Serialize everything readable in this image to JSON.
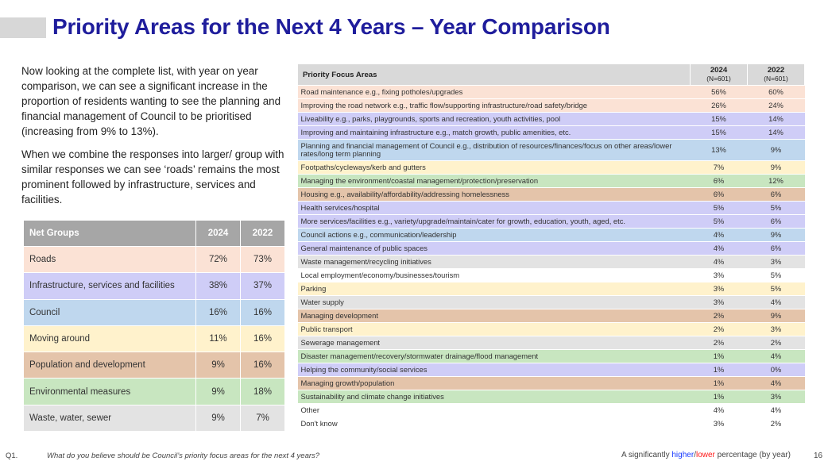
{
  "title": "Priority Areas for the Next 4 Years – Year Comparison",
  "intro": [
    "Now looking at the complete list, with year on year comparison, we can see a significant increase in the proportion of residents wanting to see the planning and financial management of Council to be prioritised (increasing from 9% to 13%).",
    "When we combine the responses into larger/ group with similar responses we can see ‘roads’ remains the most prominent followed by infrastructure, services and facilities."
  ],
  "net_groups": {
    "headers": [
      "Net Groups",
      "2024",
      "2022"
    ],
    "rows": [
      {
        "label": "Roads",
        "y2024": "72%",
        "y2022": "73%",
        "bg": "#fbe2d5",
        "c2024": "",
        "c2022": ""
      },
      {
        "label": "Infrastructure, services and facilities",
        "y2024": "38%",
        "y2022": "37%",
        "bg": "#cfcdf7",
        "c2024": "",
        "c2022": ""
      },
      {
        "label": "Council",
        "y2024": "16%",
        "y2022": "16%",
        "bg": "#bfd7ee",
        "c2024": "",
        "c2022": ""
      },
      {
        "label": "Moving around",
        "y2024": "11%",
        "y2022": "16%",
        "bg": "#fff2cc",
        "c2024": "lo",
        "c2022": "hi"
      },
      {
        "label": "Population and development",
        "y2024": "9%",
        "y2022": "16%",
        "bg": "#e4c4aa",
        "c2024": "lo",
        "c2022": "hi"
      },
      {
        "label": "Environmental measures",
        "y2024": "9%",
        "y2022": "18%",
        "bg": "#c8e6c0",
        "c2024": "lo",
        "c2022": "hi"
      },
      {
        "label": "Waste, water, sewer",
        "y2024": "9%",
        "y2022": "7%",
        "bg": "#e3e3e3",
        "c2024": "",
        "c2022": ""
      }
    ]
  },
  "priority": {
    "header_label": "Priority Focus Areas",
    "col2024": "2024",
    "col2024_sub": "(N=601)",
    "col2022": "2022",
    "col2022_sub": "(N=601)",
    "rows": [
      {
        "label": "Road maintenance e.g., fixing potholes/upgrades",
        "y2024": "56%",
        "y2022": "60%",
        "bg": "#fbe2d5",
        "c2024": "",
        "c2022": ""
      },
      {
        "label": "Improving the road network e.g., traffic flow/supporting infrastructure/road safety/bridge",
        "y2024": "26%",
        "y2022": "24%",
        "bg": "#fbe2d5",
        "c2024": "",
        "c2022": ""
      },
      {
        "label": "Liveability e.g., parks, playgrounds, sports and recreation, youth activities, pool",
        "y2024": "15%",
        "y2022": "14%",
        "bg": "#cfcdf7",
        "c2024": "",
        "c2022": ""
      },
      {
        "label": "Improving and maintaining infrastructure e.g., match growth, public amenities, etc.",
        "y2024": "15%",
        "y2022": "14%",
        "bg": "#cfcdf7",
        "c2024": "",
        "c2022": ""
      },
      {
        "label": "Planning and financial management of Council e.g., distribution of resources/finances/focus on other areas/lower rates/long term planning",
        "y2024": "13%",
        "y2022": "9%",
        "bg": "#bfd7ee",
        "c2024": "hi",
        "c2022": "lo",
        "tall": true
      },
      {
        "label": "Footpaths/cycleways/kerb and gutters",
        "y2024": "7%",
        "y2022": "9%",
        "bg": "#fff2cc",
        "c2024": "",
        "c2022": ""
      },
      {
        "label": "Managing the environment/coastal management/protection/preservation",
        "y2024": "6%",
        "y2022": "12%",
        "bg": "#c8e6c0",
        "c2024": "lo",
        "c2022": "hi"
      },
      {
        "label": "Housing e.g., availability/affordability/addressing homelessness",
        "y2024": "6%",
        "y2022": "6%",
        "bg": "#e4c4aa",
        "c2024": "",
        "c2022": ""
      },
      {
        "label": "Health services/hospital",
        "y2024": "5%",
        "y2022": "5%",
        "bg": "#cfcdf7",
        "c2024": "",
        "c2022": ""
      },
      {
        "label": "More services/facilities e.g., variety/upgrade/maintain/cater for growth, education,  youth, aged, etc.",
        "y2024": "5%",
        "y2022": "6%",
        "bg": "#cfcdf7",
        "c2024": "",
        "c2022": ""
      },
      {
        "label": "Council actions e.g., communication/leadership",
        "y2024": "4%",
        "y2022": "9%",
        "bg": "#bfd7ee",
        "c2024": "lo",
        "c2022": "hi"
      },
      {
        "label": "General maintenance of public spaces",
        "y2024": "4%",
        "y2022": "6%",
        "bg": "#cfcdf7",
        "c2024": "lo",
        "c2022": "hi"
      },
      {
        "label": "Waste management/recycling initiatives",
        "y2024": "4%",
        "y2022": "3%",
        "bg": "#e3e3e3",
        "c2024": "",
        "c2022": ""
      },
      {
        "label": "Local employment/economy/businesses/tourism",
        "y2024": "3%",
        "y2022": "5%",
        "bg": "#ffffff",
        "c2024": "",
        "c2022": ""
      },
      {
        "label": "Parking",
        "y2024": "3%",
        "y2022": "5%",
        "bg": "#fff2cc",
        "c2024": "",
        "c2022": ""
      },
      {
        "label": "Water supply",
        "y2024": "3%",
        "y2022": "4%",
        "bg": "#e3e3e3",
        "c2024": "",
        "c2022": ""
      },
      {
        "label": "Managing development",
        "y2024": "2%",
        "y2022": "9%",
        "bg": "#e4c4aa",
        "c2024": "lo",
        "c2022": "hi"
      },
      {
        "label": "Public transport",
        "y2024": "2%",
        "y2022": "3%",
        "bg": "#fff2cc",
        "c2024": "",
        "c2022": ""
      },
      {
        "label": "Sewerage management",
        "y2024": "2%",
        "y2022": "2%",
        "bg": "#e3e3e3",
        "c2024": "",
        "c2022": ""
      },
      {
        "label": "Disaster management/recovery/stormwater drainage/flood management",
        "y2024": "1%",
        "y2022": "4%",
        "bg": "#c8e6c0",
        "c2024": "lo",
        "c2022": "hi"
      },
      {
        "label": "Helping the community/social services",
        "y2024": "1%",
        "y2022": "0%",
        "bg": "#cfcdf7",
        "c2024": "hi",
        "c2022": "lo"
      },
      {
        "label": "Managing growth/population",
        "y2024": "1%",
        "y2022": "4%",
        "bg": "#e4c4aa",
        "c2024": "lo",
        "c2022": "hi"
      },
      {
        "label": "Sustainability and climate change initiatives",
        "y2024": "1%",
        "y2022": "3%",
        "bg": "#c8e6c0",
        "c2024": "",
        "c2022": ""
      },
      {
        "label": "Other",
        "y2024": "4%",
        "y2022": "4%",
        "bg": "#ffffff",
        "c2024": "",
        "c2022": ""
      },
      {
        "label": "Don't know",
        "y2024": "3%",
        "y2022": "2%",
        "bg": "#ffffff",
        "c2024": "",
        "c2022": ""
      }
    ]
  },
  "footer": {
    "question_number": "Q1.",
    "question_text": "What do you believe should be Council’s priority focus areas for the next 4 years?",
    "note_pre": "A significantly ",
    "note_higher": "higher",
    "note_slash": "/",
    "note_lower": "lower",
    "note_post": " percentage (by year)",
    "page_number": "16"
  },
  "colors": {
    "title": "#1f1d9c",
    "higher": "#1a3cff",
    "lower": "#ff1a1a",
    "header_grey": "#a6a6a6"
  }
}
